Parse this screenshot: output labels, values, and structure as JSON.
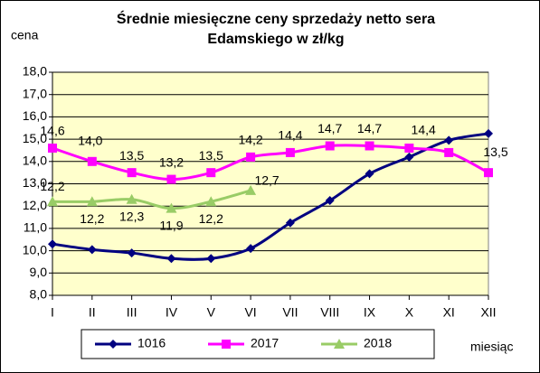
{
  "chart_data": {
    "type": "line",
    "title": [
      "Średnie miesięczne ceny sprzedaży netto sera",
      "Edamskiego w zł/kg"
    ],
    "y_label": "cena",
    "x_label": "miesiąc",
    "categories": [
      "I",
      "II",
      "III",
      "IV",
      "V",
      "VI",
      "VII",
      "VIII",
      "IX",
      "X",
      "XI",
      "XII"
    ],
    "series": [
      {
        "name": "1016",
        "color": "#000080",
        "marker": "diamond",
        "values": [
          10.3,
          10.05,
          9.9,
          9.65,
          9.65,
          10.1,
          11.25,
          12.25,
          13.45,
          14.2,
          14.95,
          15.25
        ]
      },
      {
        "name": "2017",
        "color": "#ff00ff",
        "marker": "square",
        "values": [
          14.6,
          14.0,
          13.5,
          13.2,
          13.5,
          14.2,
          14.4,
          14.7,
          14.7,
          14.6,
          14.4,
          13.5
        ],
        "value_labels": [
          "14,6",
          "14,0",
          "13,5",
          "13,2",
          "13,5",
          "14,2",
          "14,4",
          "14,7",
          "14,7",
          null,
          "14,4",
          "13,5"
        ]
      },
      {
        "name": "2018",
        "color": "#99cc66",
        "marker": "triangle",
        "values": [
          12.2,
          12.2,
          12.3,
          11.9,
          12.2,
          12.7,
          null,
          null,
          null,
          null,
          null,
          null
        ],
        "value_labels": [
          "12,2",
          "12,2",
          "12,3",
          "11,9",
          "12,2",
          "12,7",
          null,
          null,
          null,
          null,
          null,
          null
        ]
      }
    ],
    "ylim": [
      8,
      18
    ],
    "yticks": [
      {
        "value": 8,
        "label": "8,0"
      },
      {
        "value": 9,
        "label": "9,0"
      },
      {
        "value": 10,
        "label": "10,0"
      },
      {
        "value": 11,
        "label": "11,0"
      },
      {
        "value": 12,
        "label": "12,0"
      },
      {
        "value": 13,
        "label": "13,0"
      },
      {
        "value": 14,
        "label": "14,0"
      },
      {
        "value": 15,
        "label": "15,0"
      },
      {
        "value": 16,
        "label": "16,0"
      },
      {
        "value": 17,
        "label": "17,0"
      },
      {
        "value": 18,
        "label": "18,0"
      }
    ],
    "grid": true,
    "legend": "bottom",
    "background": "#ffffcc"
  }
}
